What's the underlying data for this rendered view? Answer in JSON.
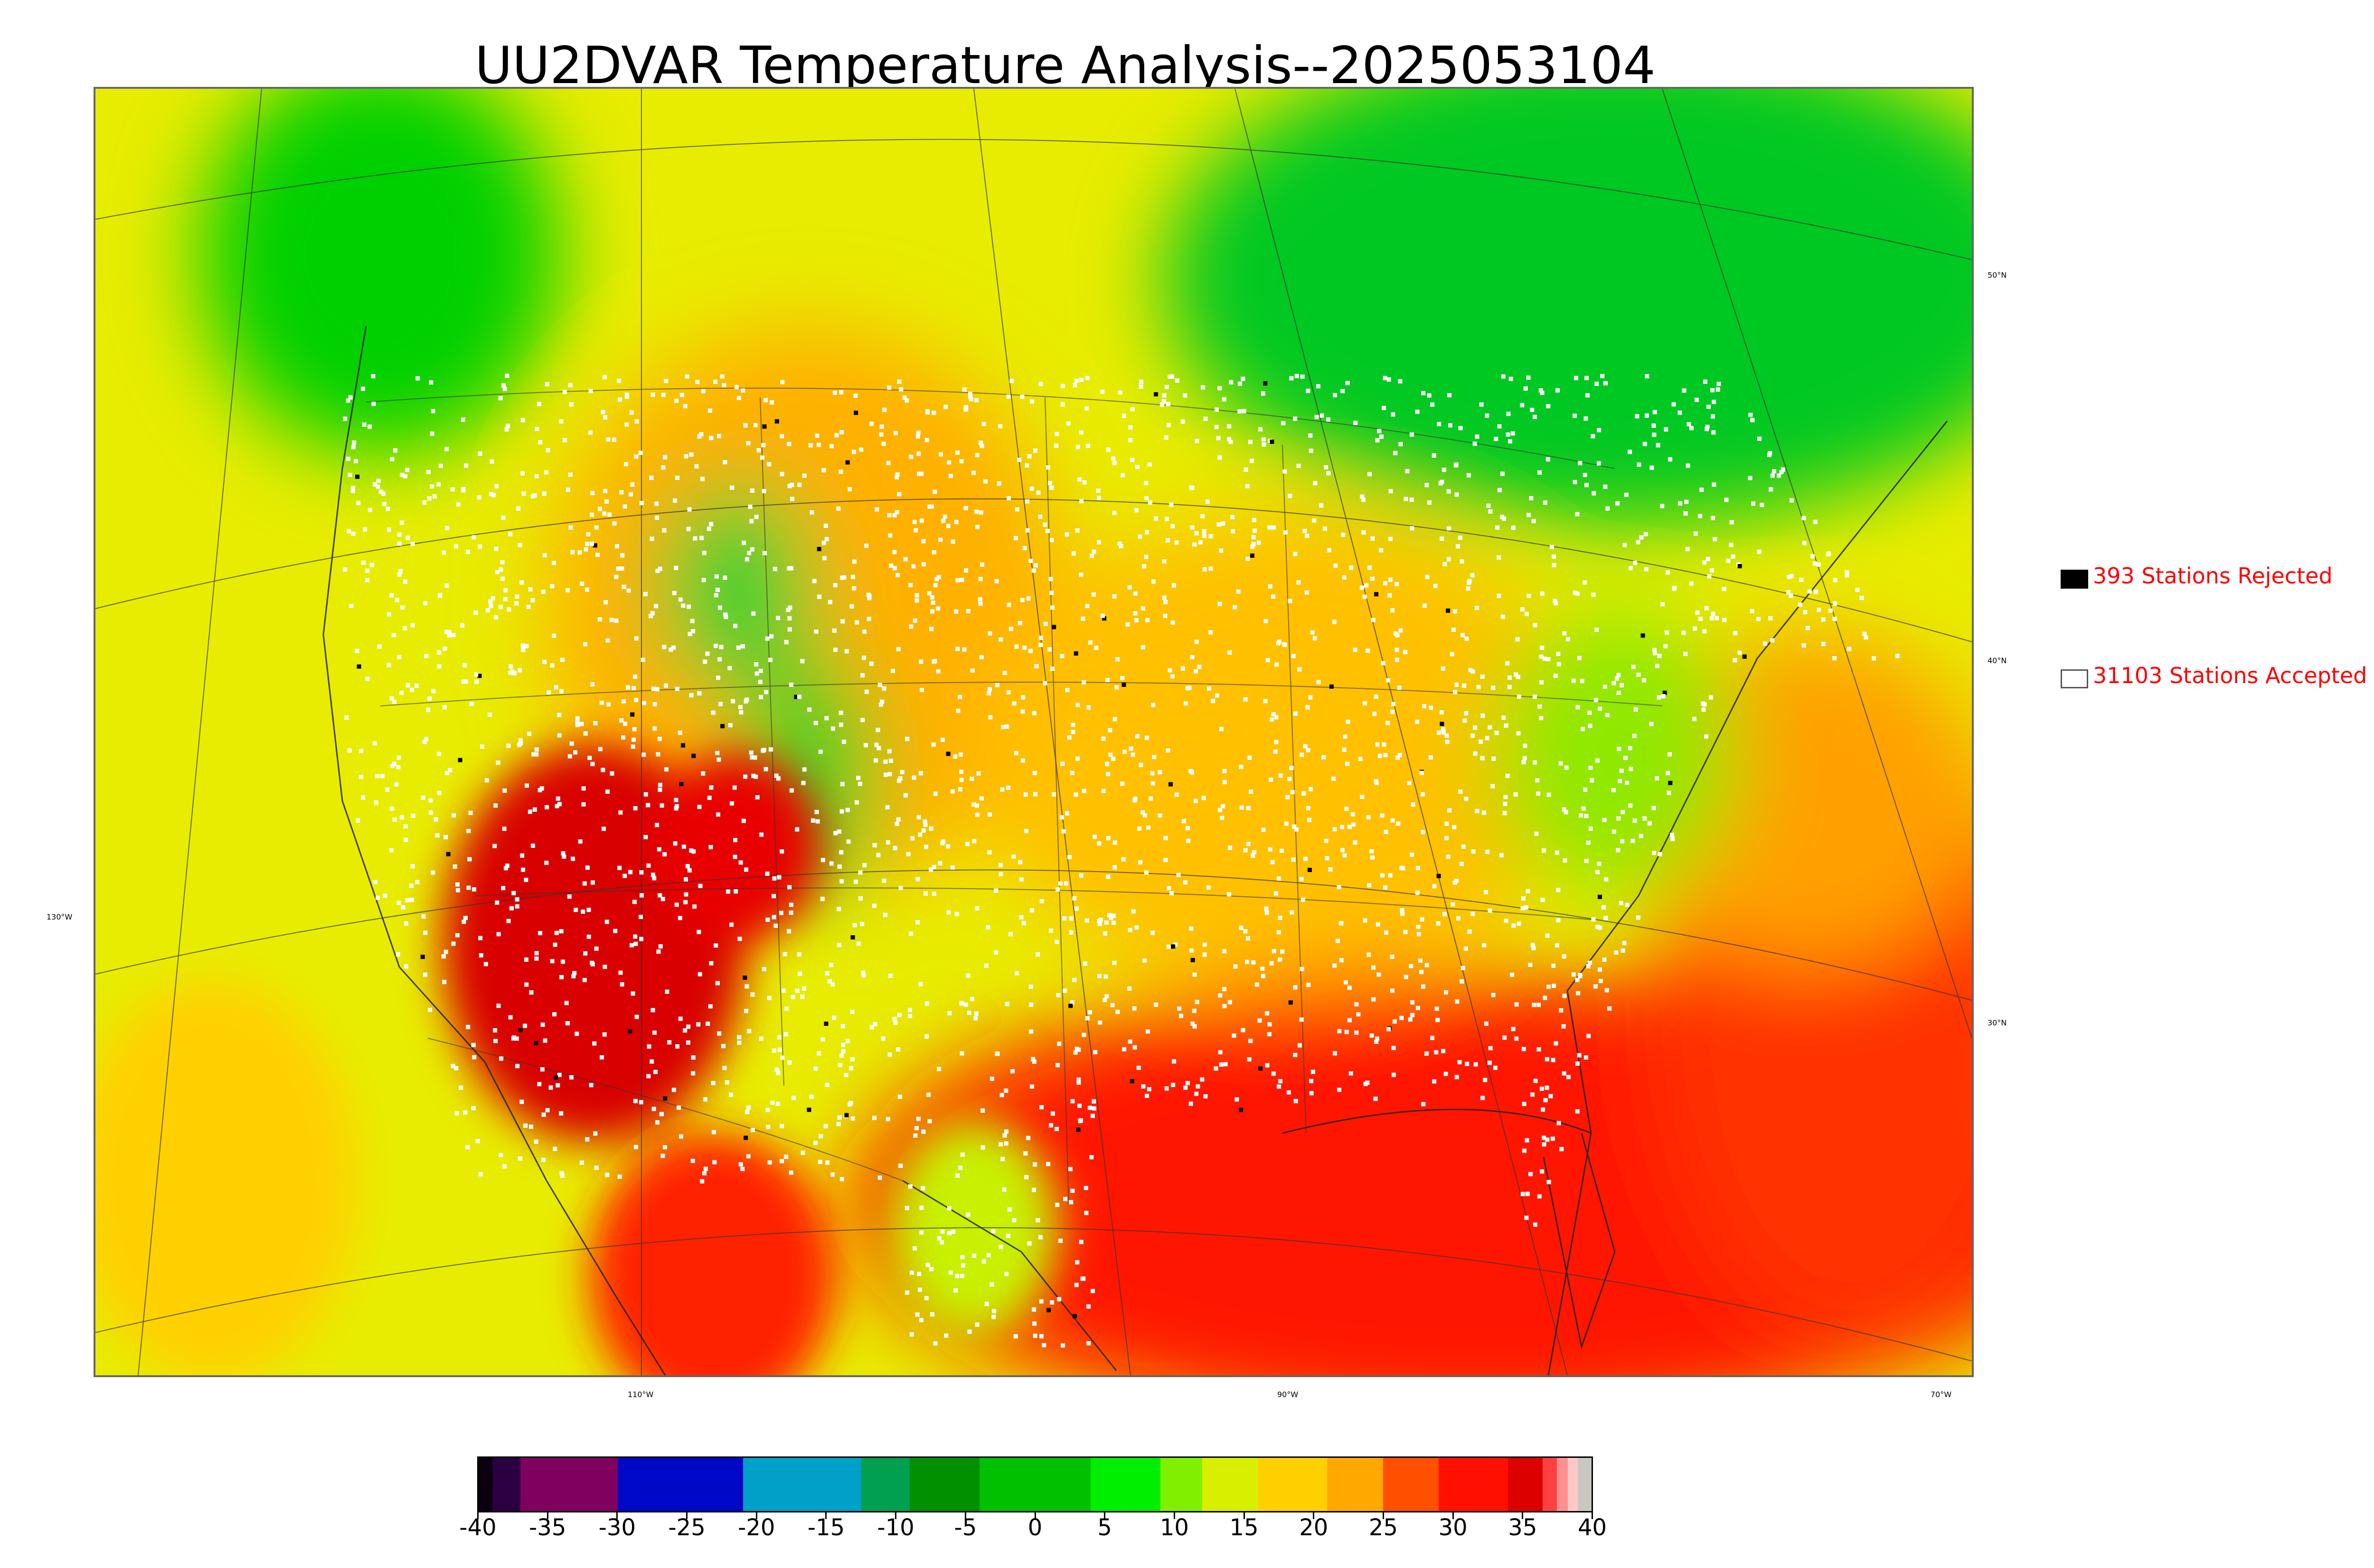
{
  "title": "UU2DVAR Temperature Analysis--2025053104",
  "map": {
    "latitude_labels": [
      "50°N",
      "40°N",
      "30°N"
    ],
    "longitude_labels": [
      "130°W",
      "110°W",
      "90°W",
      "70°W"
    ],
    "colors": {
      "cool": "#00e000",
      "mild": "#e8ec00",
      "warm": "#ffa000",
      "hot": "#ff1000",
      "accepted_station": "#ffffff",
      "rejected_station": "#000000"
    }
  },
  "legend": {
    "rejected_label": "393 Stations Rejected",
    "accepted_label": "31103 Stations Accepted"
  },
  "colorbar": {
    "ticks": [
      "-40",
      "-35",
      "-30",
      "-25",
      "-20",
      "-15",
      "-10",
      "-5",
      "0",
      "5",
      "10",
      "15",
      "20",
      "25",
      "30",
      "35",
      "40"
    ],
    "min": -40,
    "max": 40,
    "segments": [
      {
        "from": -40,
        "to": -39,
        "color": "#0a0010"
      },
      {
        "from": -39,
        "to": -37,
        "color": "#2a0040"
      },
      {
        "from": -37,
        "to": -30,
        "color": "#800060"
      },
      {
        "from": -30,
        "to": -21,
        "color": "#0008c8"
      },
      {
        "from": -21,
        "to": -12.5,
        "color": "#00a0c8"
      },
      {
        "from": -12.5,
        "to": -9,
        "color": "#00a050"
      },
      {
        "from": -9,
        "to": -4,
        "color": "#009000"
      },
      {
        "from": -4,
        "to": 4,
        "color": "#00c000"
      },
      {
        "from": 4,
        "to": 9,
        "color": "#00ee00"
      },
      {
        "from": 9,
        "to": 12,
        "color": "#80f000"
      },
      {
        "from": 12,
        "to": 16,
        "color": "#d8f000"
      },
      {
        "from": 16,
        "to": 21,
        "color": "#ffd000"
      },
      {
        "from": 21,
        "to": 25,
        "color": "#ffa800"
      },
      {
        "from": 25,
        "to": 29,
        "color": "#ff5000"
      },
      {
        "from": 29,
        "to": 34,
        "color": "#ff1000"
      },
      {
        "from": 34,
        "to": 36.5,
        "color": "#dd0000"
      },
      {
        "from": 36.5,
        "to": 37.5,
        "color": "#ff4040"
      },
      {
        "from": 37.5,
        "to": 38.3,
        "color": "#ff9090"
      },
      {
        "from": 38.3,
        "to": 39,
        "color": "#ffc8c8"
      },
      {
        "from": 39,
        "to": 40,
        "color": "#c8c8c0"
      }
    ]
  }
}
